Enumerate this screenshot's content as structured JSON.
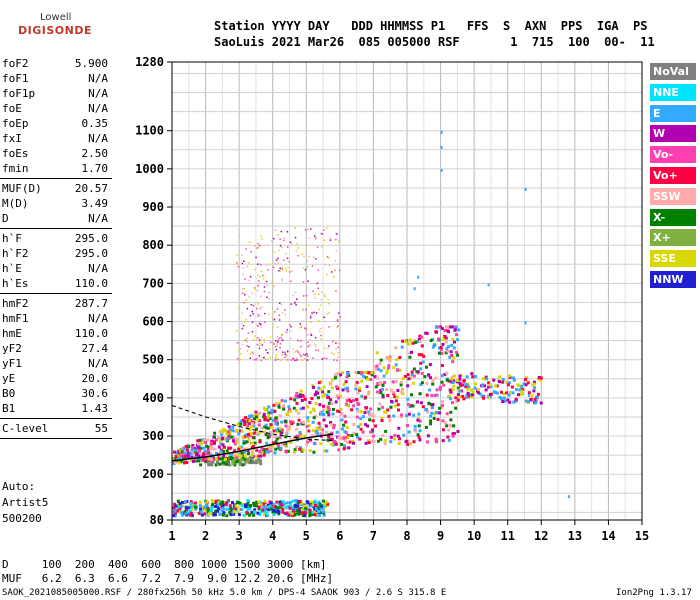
{
  "logo": {
    "line1": "Lowell",
    "line2": "DIGISONDE"
  },
  "header": {
    "line1": "Station YYYY DAY   DDD HHMMSS P1   FFS  S  AXN  PPS  IGA  PS",
    "line2": "SaoLuis 2021 Mar26  085 005000 RSF       1  715  100  00-  11"
  },
  "params": {
    "group1": [
      {
        "name": "foF2",
        "value": "5.900"
      },
      {
        "name": "foF1",
        "value": "N/A"
      },
      {
        "name": "foF1p",
        "value": "N/A"
      },
      {
        "name": "foE",
        "value": "N/A"
      },
      {
        "name": "foEp",
        "value": "0.35"
      },
      {
        "name": "fxI",
        "value": "N/A"
      },
      {
        "name": "foEs",
        "value": "2.50"
      },
      {
        "name": "fmin",
        "value": "1.70"
      }
    ],
    "group2": [
      {
        "name": "MUF(D)",
        "value": "20.57"
      },
      {
        "name": "M(D)",
        "value": "3.49"
      },
      {
        "name": "D",
        "value": "N/A"
      }
    ],
    "group3": [
      {
        "name": "h`F",
        "value": "295.0"
      },
      {
        "name": "h`F2",
        "value": "295.0"
      },
      {
        "name": "h`E",
        "value": "N/A"
      },
      {
        "name": "h`Es",
        "value": "110.0"
      }
    ],
    "group4": [
      {
        "name": "hmF2",
        "value": "287.7"
      },
      {
        "name": "hmF1",
        "value": "N/A"
      },
      {
        "name": "hmE",
        "value": "110.0"
      },
      {
        "name": "yF2",
        "value": "27.4"
      },
      {
        "name": "yF1",
        "value": "N/A"
      },
      {
        "name": "yE",
        "value": "20.0"
      },
      {
        "name": "B0",
        "value": "30.6"
      },
      {
        "name": "B1",
        "value": "1.43"
      }
    ],
    "group5": [
      {
        "name": "C-level",
        "value": "55"
      }
    ],
    "auto": [
      "Auto:",
      "Artist5",
      "500200"
    ]
  },
  "legend": [
    {
      "label": "NoVal",
      "color": "#808080"
    },
    {
      "label": "NNE",
      "color": "#00e5ff"
    },
    {
      "label": "E",
      "color": "#33aaff"
    },
    {
      "label": "W",
      "color": "#b000b0"
    },
    {
      "label": "Vo-",
      "color": "#ff40b0"
    },
    {
      "label": "Vo+",
      "color": "#ff0044"
    },
    {
      "label": "SSW",
      "color": "#ffaaaa"
    },
    {
      "label": "X-",
      "color": "#008000"
    },
    {
      "label": "X+",
      "color": "#80b040"
    },
    {
      "label": "SSE",
      "color": "#d8d800"
    },
    {
      "label": "NNW",
      "color": "#2020d0"
    }
  ],
  "muf_table": {
    "d_line": "D     100  200  400  600  800 1000 1500 3000 [km]",
    "muf_line": "MUF   6.2  6.3  6.6  7.2  7.9  9.0 12.2 20.6 [MHz]"
  },
  "footer": {
    "left": "SAOK_2021085005000.RSF / 280fx256h 50 kHz 5.0 km / DPS-4 SAAOK 903 / 2.6 S 315.8 E",
    "right": "Ion2Png 1.3.17"
  },
  "chart_data": {
    "type": "scatter",
    "x_ticks": [
      1,
      2,
      3,
      4,
      5,
      6,
      7,
      8,
      9,
      10,
      11,
      12,
      13,
      14,
      15
    ],
    "y_ticks": [
      80,
      200,
      300,
      400,
      500,
      600,
      700,
      800,
      900,
      1000,
      1100,
      1280
    ],
    "xlim": [
      1,
      15
    ],
    "ylim": [
      80,
      1280
    ],
    "grid": true,
    "clusters": [
      {
        "name": "Es trace (110 km)",
        "x_range": [
          1.0,
          5.6
        ],
        "y_range": [
          95,
          135
        ],
        "colors": [
          "#2020d0",
          "#ff0044",
          "#33aaff",
          "#008000",
          "#d8d800",
          "#00e5ff"
        ]
      },
      {
        "name": "E layer band",
        "x_range": [
          1.8,
          3.6
        ],
        "y_range": [
          228,
          248
        ],
        "colors": [
          "#008000",
          "#80b040",
          "#808080"
        ]
      },
      {
        "name": "F2 trace",
        "x_range": [
          1.0,
          9.5
        ],
        "y_range": [
          230,
          470
        ],
        "colors": [
          "#ff0044",
          "#ff40b0",
          "#b000b0",
          "#d8d800",
          "#008000",
          "#33aaff",
          "#ffaaaa"
        ]
      },
      {
        "name": "F2 cusp",
        "x_range": [
          9.2,
          12.0
        ],
        "y_range": [
          380,
          480
        ],
        "colors": [
          "#d8d800",
          "#ff0044",
          "#b000b0",
          "#33aaff"
        ]
      },
      {
        "name": "Spread-F high",
        "x_range": [
          2.9,
          6.0
        ],
        "y_range": [
          500,
          850
        ],
        "colors": [
          "#b000b0",
          "#ff40b0",
          "#d8d800",
          "#ffaaaa"
        ]
      }
    ],
    "profile_line": [
      [
        1.0,
        235
      ],
      [
        2.0,
        245
      ],
      [
        3.0,
        260
      ],
      [
        4.0,
        278
      ],
      [
        5.0,
        295
      ],
      [
        5.8,
        305
      ]
    ],
    "dashed_line": [
      [
        1.0,
        380
      ],
      [
        2.0,
        350
      ],
      [
        3.0,
        325
      ],
      [
        4.0,
        305
      ],
      [
        5.0,
        292
      ],
      [
        5.8,
        288
      ]
    ]
  }
}
